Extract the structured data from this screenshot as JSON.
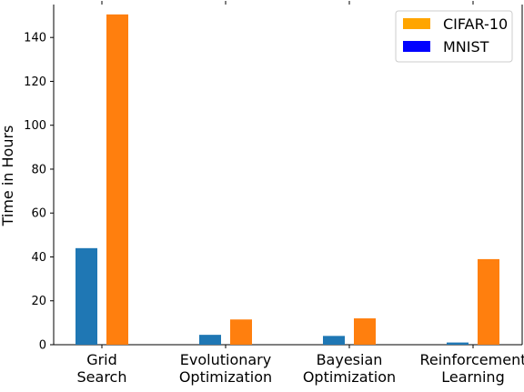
{
  "chart_data": {
    "type": "bar",
    "title": "",
    "xlabel": "",
    "ylabel": "Time in Hours",
    "categories": [
      [
        "Grid",
        "Search"
      ],
      [
        "Evolutionary",
        "Optimization"
      ],
      [
        "Bayesian",
        "Optimization"
      ],
      [
        "Reinforcement",
        "Learning"
      ]
    ],
    "series": [
      {
        "name": "MNIST",
        "color": "#1f77b4",
        "values": [
          44,
          4.5,
          4,
          1
        ]
      },
      {
        "name": "CIFAR-10",
        "color": "#ff7f0e",
        "values": [
          150.5,
          11.5,
          12,
          39
        ]
      }
    ],
    "ylim": [
      0,
      155
    ],
    "yticks": [
      0,
      20,
      40,
      60,
      80,
      100,
      120,
      140
    ],
    "legend": {
      "placement": "top-right",
      "entries": [
        {
          "label": "CIFAR-10",
          "color": "#ffa500"
        },
        {
          "label": "MNIST",
          "color": "#0000ff"
        }
      ]
    },
    "grid": false
  }
}
